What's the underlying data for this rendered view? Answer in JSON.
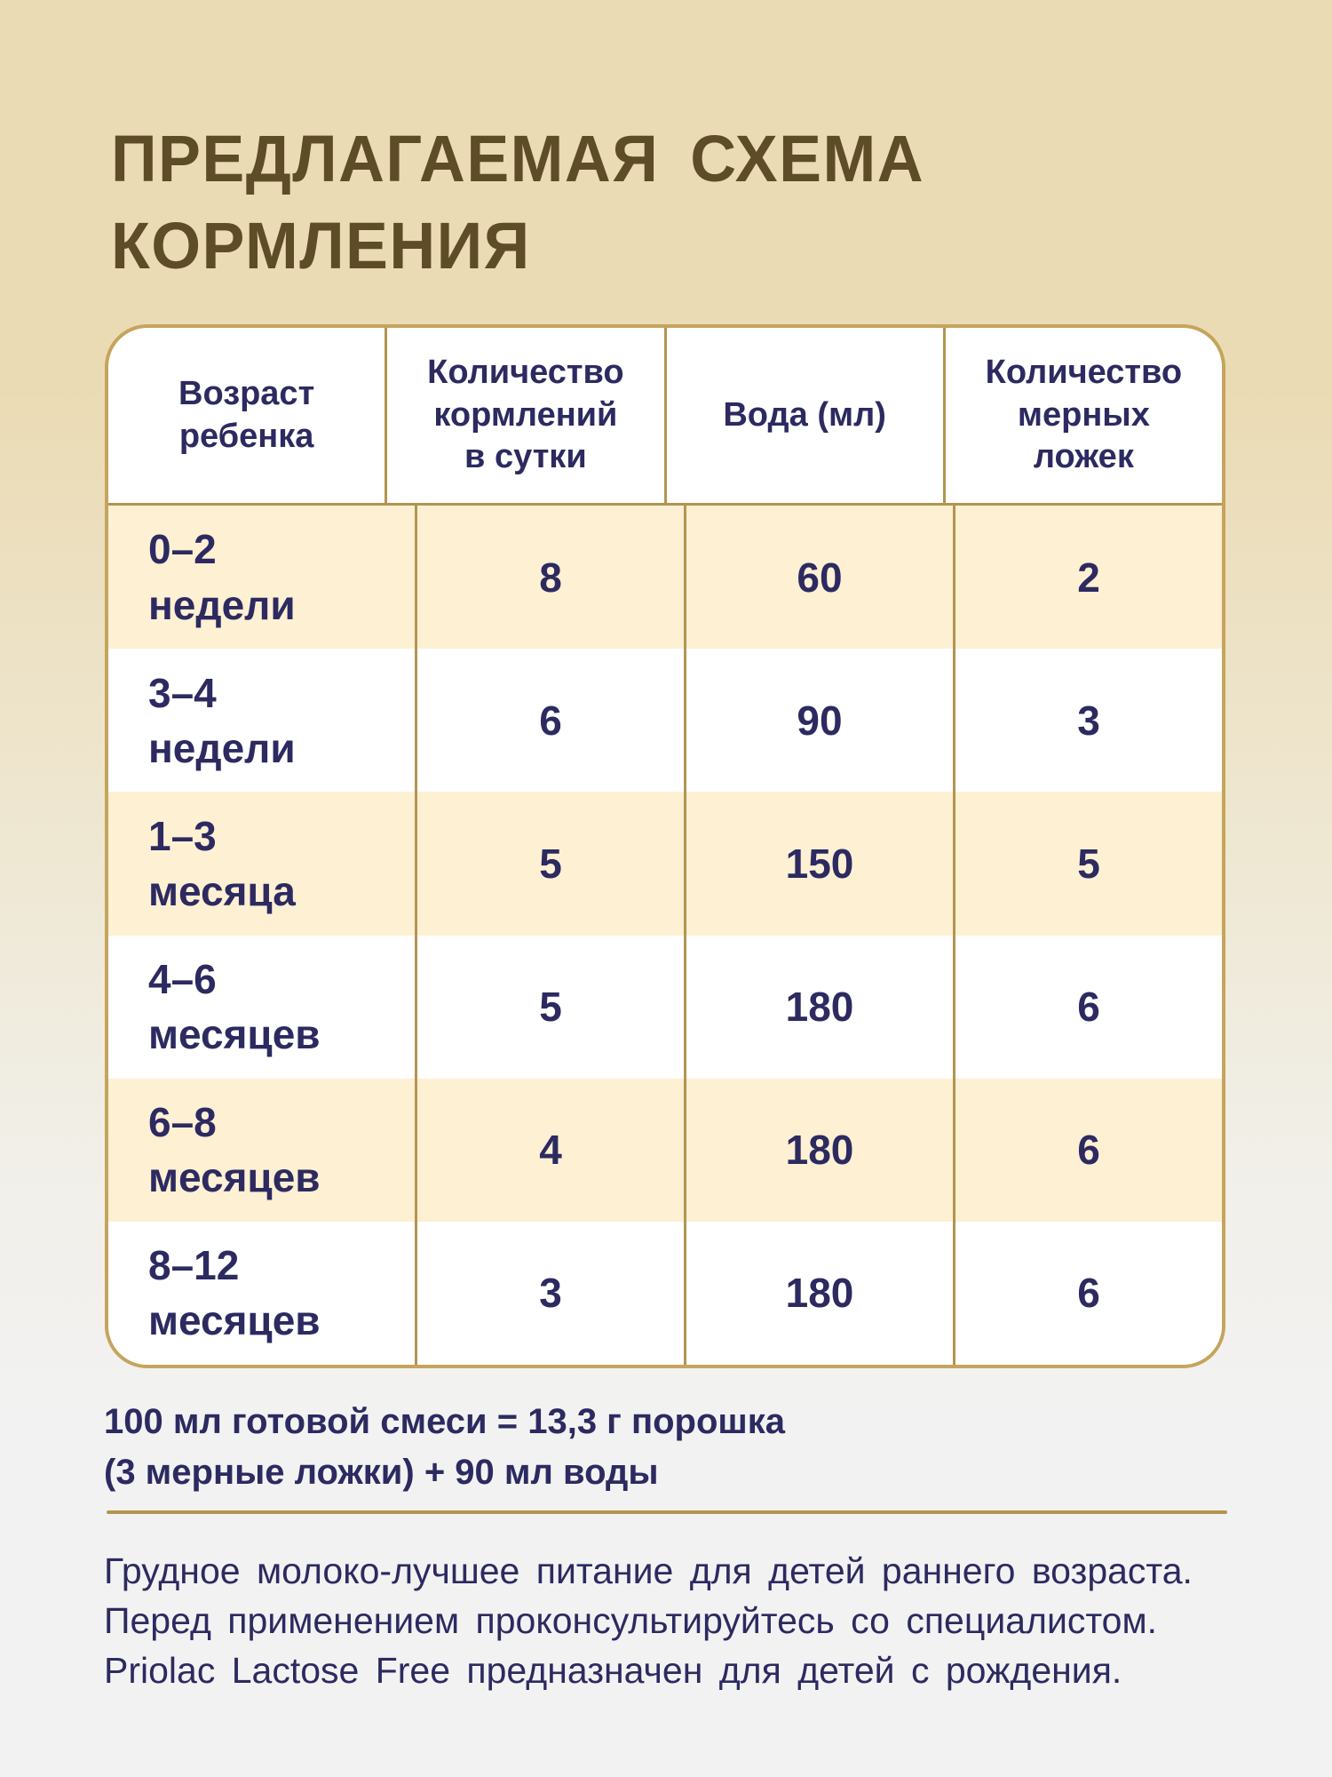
{
  "title": "ПРЕДЛАГАЕМАЯ СХЕМА\nКОРМЛЕНИЯ",
  "table": {
    "headers": {
      "age": "Возраст\nребенка",
      "feedings": "Количество\nкормлений\nв сутки",
      "water": "Вода (мл)",
      "spoons": "Количество\nмерных\nложек"
    },
    "rows": [
      {
        "age": "0–2\nнедели",
        "feedings": "8",
        "water": "60",
        "spoons": "2"
      },
      {
        "age": "3–4\nнедели",
        "feedings": "6",
        "water": "90",
        "spoons": "3"
      },
      {
        "age": "1–3\nмесяца",
        "feedings": "5",
        "water": "150",
        "spoons": "5"
      },
      {
        "age": "4–6\nмесяцев",
        "feedings": "5",
        "water": "180",
        "spoons": "6"
      },
      {
        "age": "6–8\nмесяцев",
        "feedings": "4",
        "water": "180",
        "spoons": "6"
      },
      {
        "age": "8–12\nмесяцев",
        "feedings": "3",
        "water": "180",
        "spoons": "6"
      }
    ]
  },
  "footnote": {
    "line1": "100 мл готовой смеси = 13,3 г порошка",
    "line2": "(3 мерные ложки) + 90 мл воды"
  },
  "disclaimer": {
    "line1": "Грудное молоко-лучшее питание для детей раннего возраста.",
    "line2": "Перед применением проконсультируйтесь со специалистом.",
    "line3": "Priolac Lactose Free предназначен для детей с рождения."
  },
  "colors": {
    "background_top": "#ebdbb5",
    "background_bottom": "#f2f2f2",
    "title_brown": "#5e4b28",
    "text_navy": "#2c2a60",
    "gold_border": "#c5a45c",
    "gold_divider": "#b2954f",
    "row_cream": "#fdf0d3",
    "row_white": "#ffffff"
  }
}
